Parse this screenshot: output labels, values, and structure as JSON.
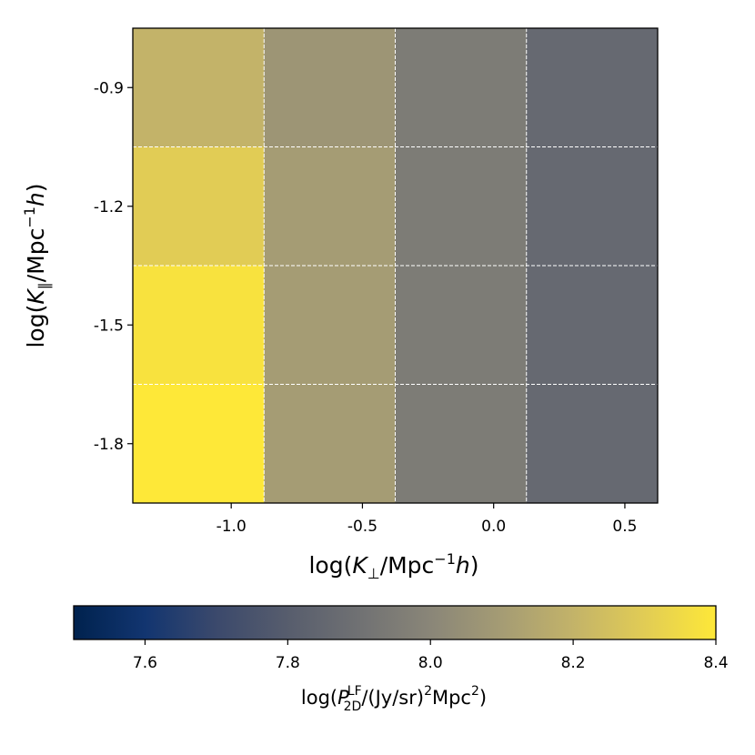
{
  "chart_data": {
    "type": "heatmap",
    "title": "",
    "x_axis": {
      "label_parts": [
        "log(",
        "K",
        "⊥",
        "/Mpc",
        "−1",
        "h",
        ")"
      ],
      "range": [
        -1.375,
        0.625
      ],
      "ticks": [
        -1.0,
        -0.5,
        0.0,
        0.5
      ],
      "tick_labels": [
        "-1.0",
        "-0.5",
        "0.0",
        "0.5"
      ]
    },
    "y_axis": {
      "label_parts": [
        "log(",
        "K",
        "∥",
        "/Mpc",
        "−1",
        "h",
        ")"
      ],
      "range": [
        -1.95,
        -0.75
      ],
      "ticks": [
        -0.9,
        -1.2,
        -1.5,
        -1.8
      ],
      "tick_labels": [
        "-0.9",
        "-1.2",
        "-1.5",
        "-1.8"
      ]
    },
    "x_edges": [
      -1.375,
      -0.875,
      -0.375,
      0.125,
      0.625
    ],
    "y_edges": [
      -0.75,
      -1.05,
      -1.35,
      -1.65,
      -1.95
    ],
    "values": [
      [
        8.2,
        8.07,
        7.95,
        7.86
      ],
      [
        8.3,
        8.1,
        7.95,
        7.86
      ],
      [
        8.38,
        8.1,
        7.95,
        7.86
      ],
      [
        8.4,
        8.1,
        7.95,
        7.86
      ]
    ],
    "grid": true,
    "colorbar": {
      "colormap": "cividis",
      "orientation": "horizontal",
      "placement": "bottom",
      "range": [
        7.5,
        8.4
      ],
      "ticks": [
        7.6,
        7.8,
        8.0,
        8.2,
        8.4
      ],
      "tick_labels": [
        "7.6",
        "7.8",
        "8.0",
        "8.2",
        "8.4"
      ],
      "label_parts": [
        "log(",
        "P",
        "LF",
        "2D",
        "/(Jy/sr)",
        "2",
        "Mpc",
        "2",
        ")"
      ]
    }
  }
}
